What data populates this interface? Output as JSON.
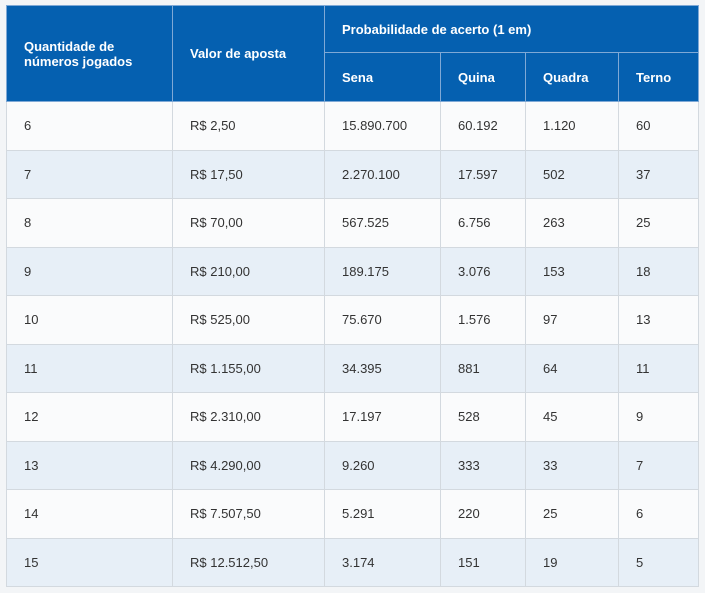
{
  "header": {
    "qty": "Quantidade de números jogados",
    "value": "Valor de aposta",
    "prob": "Probabilidade de acerto (1 em)",
    "sena": "Sena",
    "quina": "Quina",
    "quadra": "Quadra",
    "terno": "Terno"
  },
  "rows": [
    [
      "6",
      "R$ 2,50",
      "15.890.700",
      "60.192",
      "1.120",
      "60"
    ],
    [
      "7",
      "R$ 17,50",
      "2.270.100",
      "17.597",
      "502",
      "37"
    ],
    [
      "8",
      "R$ 70,00",
      "567.525",
      "6.756",
      "263",
      "25"
    ],
    [
      "9",
      "R$ 210,00",
      "189.175",
      "3.076",
      "153",
      "18"
    ],
    [
      "10",
      "R$ 525,00",
      "75.670",
      "1.576",
      "97",
      "13"
    ],
    [
      "11",
      "R$ 1.155,00",
      "34.395",
      "881",
      "64",
      "11"
    ],
    [
      "12",
      "R$ 2.310,00",
      "17.197",
      "528",
      "45",
      "9"
    ],
    [
      "13",
      "R$ 4.290,00",
      "9.260",
      "333",
      "33",
      "7"
    ],
    [
      "14",
      "R$ 7.507,50",
      "5.291",
      "220",
      "25",
      "6"
    ],
    [
      "15",
      "R$ 12.512,50",
      "3.174",
      "151",
      "19",
      "5"
    ]
  ],
  "colors": {
    "header_bg": "#0560b0",
    "row_alt": "#e7eff7"
  }
}
